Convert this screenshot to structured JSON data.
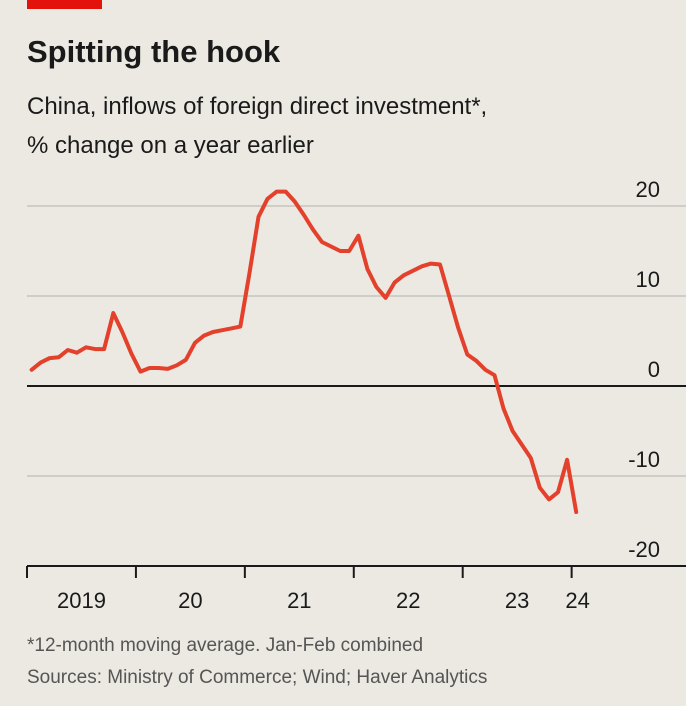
{
  "chart_data": {
    "type": "line",
    "title": "Spitting the hook",
    "subtitle": [
      "China, inflows of foreign direct investment*,",
      "% change on a year earlier"
    ],
    "note": "*12-month moving average. Jan-Feb combined",
    "source": "Sources: Ministry of Commerce; Wind; Haver Analytics",
    "x": [
      2019.042,
      2019.125,
      2019.208,
      2019.292,
      2019.375,
      2019.458,
      2019.542,
      2019.625,
      2019.708,
      2019.792,
      2019.875,
      2019.958,
      2020.042,
      2020.125,
      2020.208,
      2020.292,
      2020.375,
      2020.458,
      2020.542,
      2020.625,
      2020.708,
      2020.792,
      2020.875,
      2020.958,
      2021.042,
      2021.125,
      2021.208,
      2021.292,
      2021.375,
      2021.458,
      2021.542,
      2021.625,
      2021.708,
      2021.792,
      2021.875,
      2021.958,
      2022.042,
      2022.125,
      2022.208,
      2022.292,
      2022.375,
      2022.458,
      2022.542,
      2022.625,
      2022.708,
      2022.792,
      2022.875,
      2022.958,
      2023.042,
      2023.125,
      2023.208,
      2023.292,
      2023.375,
      2023.458,
      2023.542,
      2023.625,
      2023.708,
      2023.792,
      2023.875,
      2023.958,
      2024.042
    ],
    "series": [
      {
        "color": "#e3412b",
        "values": [
          1.8,
          2.6,
          3.1,
          3.2,
          4.0,
          3.7,
          4.3,
          4.1,
          4.1,
          8.1,
          6.0,
          3.6,
          1.6,
          2.0,
          2.0,
          1.9,
          2.3,
          2.9,
          4.8,
          5.6,
          6.0,
          6.2,
          6.4,
          6.6,
          12.5,
          18.8,
          20.8,
          21.6,
          21.6,
          20.5,
          19.0,
          17.4,
          16.0,
          15.5,
          15.0,
          15.0,
          16.7,
          13.0,
          11.0,
          9.8,
          11.5,
          12.3,
          12.8,
          13.3,
          13.6,
          13.5,
          10.0,
          6.5,
          3.5,
          2.8,
          1.8,
          1.2,
          -2.5,
          -5.0,
          -6.5,
          -8.0,
          -11.3,
          -12.6,
          -11.8,
          -8.2,
          -14.0
        ]
      }
    ],
    "xlim": [
      2019,
      2025.05
    ],
    "xticks": [
      {
        "value": 2019,
        "label": "2019"
      },
      {
        "value": 2020,
        "label": "20"
      },
      {
        "value": 2021,
        "label": "21"
      },
      {
        "value": 2022,
        "label": "22"
      },
      {
        "value": 2023,
        "label": "23"
      },
      {
        "value": 2024,
        "label": "24"
      }
    ],
    "ylim": [
      -20,
      20
    ],
    "yticks": [
      20,
      10,
      0,
      -10,
      -20
    ],
    "grid": true
  }
}
